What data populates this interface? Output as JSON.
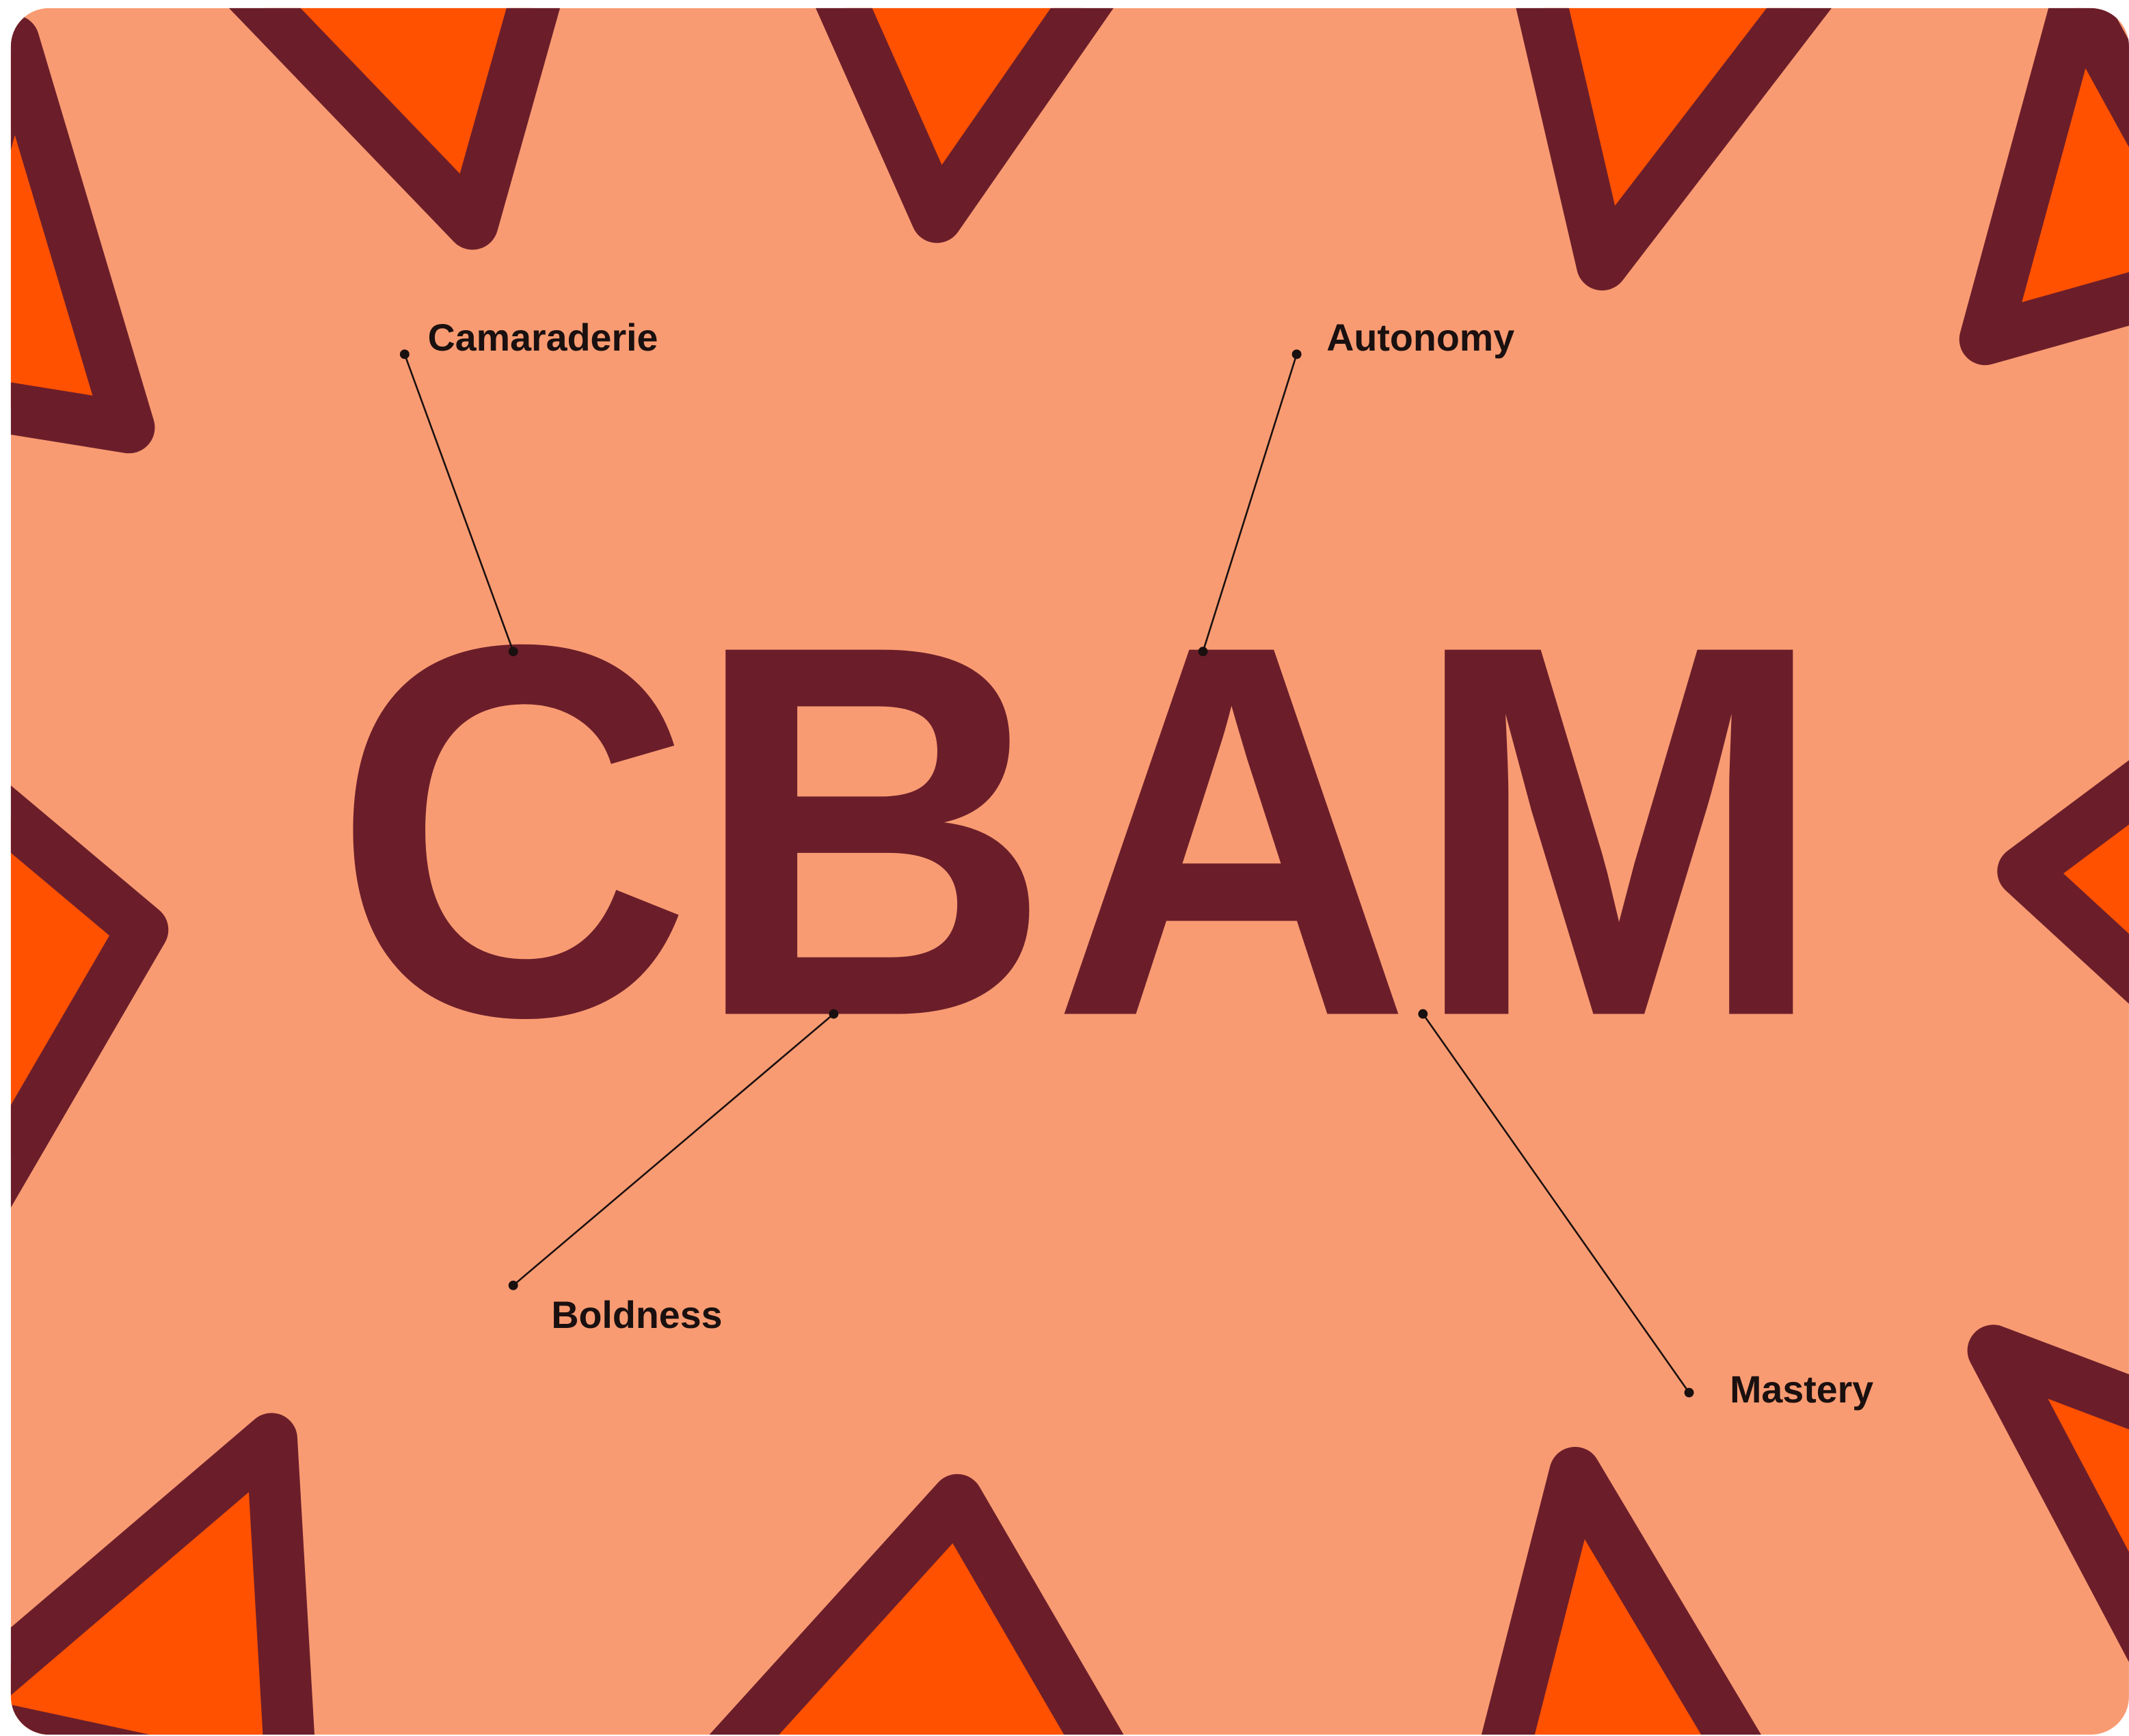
{
  "wordmark": "CBAM",
  "callouts": [
    {
      "label": "Camaraderie"
    },
    {
      "label": "Autonomy"
    },
    {
      "label": "Boldness"
    },
    {
      "label": "Mastery"
    }
  ]
}
